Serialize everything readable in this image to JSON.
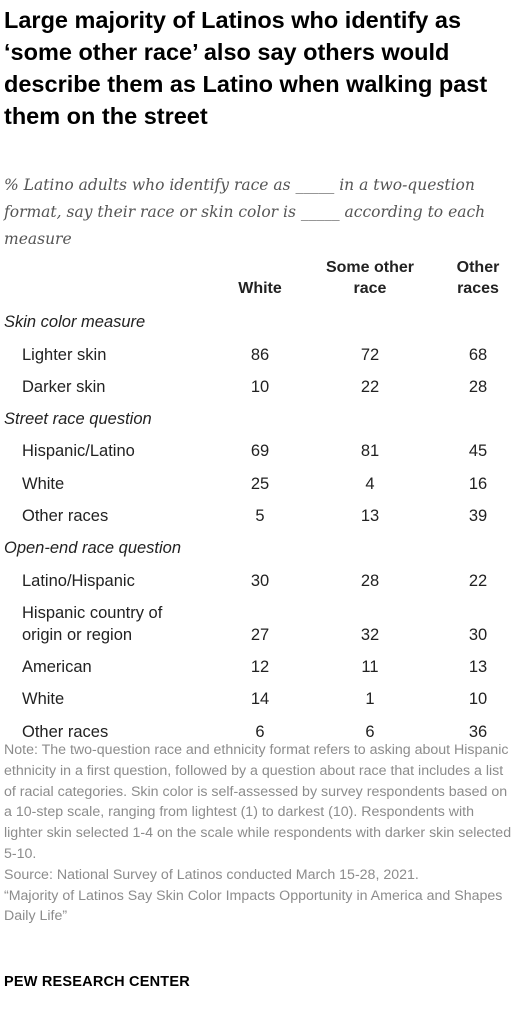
{
  "title": "Large majority of Latinos who identify as ‘some other race’ also say others would describe them as Latino when walking past them on the street",
  "subtitle": "% Latino adults who identify race as _____ in a two-question format, say their race or skin color is _____ according to each measure",
  "columns": [
    "White",
    "Some other race",
    "Other races"
  ],
  "sections": [
    {
      "name": "Skin color measure",
      "rows": [
        {
          "label": "Lighter skin",
          "values": [
            "86",
            "72",
            "68"
          ]
        },
        {
          "label": "Darker skin",
          "values": [
            "10",
            "22",
            "28"
          ]
        }
      ]
    },
    {
      "name": "Street race question",
      "rows": [
        {
          "label": "Hispanic/Latino",
          "values": [
            "69",
            "81",
            "45"
          ]
        },
        {
          "label": "White",
          "values": [
            "25",
            "4",
            "16"
          ]
        },
        {
          "label": "Other races",
          "values": [
            "5",
            "13",
            "39"
          ]
        }
      ]
    },
    {
      "name": "Open-end race question",
      "rows": [
        {
          "label": "Latino/Hispanic",
          "values": [
            "30",
            "28",
            "22"
          ]
        },
        {
          "label": "Hispanic country of origin or region",
          "values": [
            "27",
            "32",
            "30"
          ]
        },
        {
          "label": "American",
          "values": [
            "12",
            "11",
            "13"
          ]
        },
        {
          "label": "White",
          "values": [
            "14",
            "1",
            "10"
          ]
        },
        {
          "label": "Other races",
          "values": [
            "6",
            "6",
            "36"
          ]
        }
      ]
    }
  ],
  "note": "Note: The two-question race and ethnicity format refers to asking about Hispanic ethnicity in a first question, followed by a question about race that includes a list of racial categories. Skin color is self-assessed by survey respondents based on a 10-step scale, ranging from lightest (1) to darkest (10). Respondents with lighter skin selected 1-4 on the scale while respondents with darker skin selected 5-10.",
  "source": "Source: National Survey of Latinos conducted March 15-28, 2021.",
  "report": "“Majority of Latinos Say Skin Color Impacts Opportunity in America and Shapes Daily Life”",
  "brand": "PEW RESEARCH CENTER",
  "chart_data": {
    "type": "table",
    "title": "Large majority of Latinos who identify as ‘some other race’ also say others would describe them as Latino when walking past them on the street",
    "columns": [
      "White",
      "Some other race",
      "Other races"
    ],
    "rows": [
      {
        "section": "Skin color measure",
        "label": "Lighter skin",
        "values": [
          86,
          72,
          68
        ]
      },
      {
        "section": "Skin color measure",
        "label": "Darker skin",
        "values": [
          10,
          22,
          28
        ]
      },
      {
        "section": "Street race question",
        "label": "Hispanic/Latino",
        "values": [
          69,
          81,
          45
        ]
      },
      {
        "section": "Street race question",
        "label": "White",
        "values": [
          25,
          4,
          16
        ]
      },
      {
        "section": "Street race question",
        "label": "Other races",
        "values": [
          5,
          13,
          39
        ]
      },
      {
        "section": "Open-end race question",
        "label": "Latino/Hispanic",
        "values": [
          30,
          28,
          22
        ]
      },
      {
        "section": "Open-end race question",
        "label": "Hispanic country of origin or region",
        "values": [
          27,
          32,
          30
        ]
      },
      {
        "section": "Open-end race question",
        "label": "American",
        "values": [
          12,
          11,
          13
        ]
      },
      {
        "section": "Open-end race question",
        "label": "White",
        "values": [
          14,
          1,
          10
        ]
      },
      {
        "section": "Open-end race question",
        "label": "Other races",
        "values": [
          6,
          6,
          36
        ]
      }
    ]
  }
}
